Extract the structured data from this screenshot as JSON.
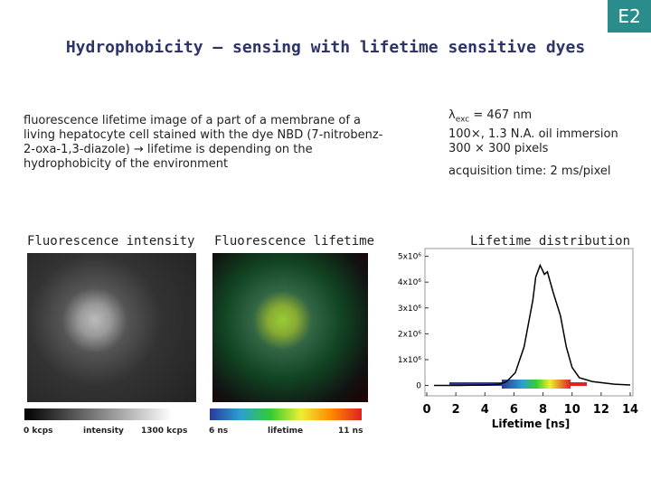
{
  "badge": "E2",
  "title": "Hydrophobicity – sensing with lifetime sensitive dyes",
  "description": "fluorescence lifetime image of a part of a membrane of a living hepatocyte cell stained with the dye NBD (7-nitrobenz-2-oxa-1,3-diazole) → lifetime is depending on the hydrophobicity of the environment",
  "parameters": {
    "excitation": {
      "symbol": "λ",
      "subscript": "exc",
      "text": "= 467 nm"
    },
    "lines": [
      "100×, 1.3 N.A. oil immersion",
      "300 × 300 pixels"
    ],
    "acquisition": "acquisition time: 2 ms/pixel"
  },
  "panels": [
    {
      "title": "Fluorescence intensity",
      "scale": [
        "0 kcps",
        "intensity",
        "1300 kcps"
      ]
    },
    {
      "title": "Fluorescence lifetime",
      "scale": [
        "6 ns",
        "lifetime",
        "11 ns"
      ]
    }
  ],
  "chart_data": {
    "type": "line",
    "title": "Lifetime distribution",
    "xlabel": "Lifetime [ns]",
    "x": [
      0.5,
      2,
      4,
      5,
      5.5,
      6.1,
      6.7,
      7.3,
      7.5,
      7.8,
      8.1,
      8.3,
      8.7,
      9.2,
      9.6,
      10,
      10.5,
      11.4,
      12.9,
      14
    ],
    "series": [
      {
        "color": "#000000",
        "values": [
          0,
          0,
          20000,
          50000,
          150000,
          500000,
          1500000,
          3300000,
          4200000,
          4650000,
          4300000,
          4400000,
          3600000,
          2700000,
          1500000,
          700000,
          300000,
          150000,
          50000,
          20000
        ]
      }
    ],
    "xlim": [
      0,
      14
    ],
    "ylim": [
      -400000,
      5300000
    ],
    "xticks": [
      0,
      2,
      4,
      6,
      8,
      10,
      12,
      14
    ],
    "yticks": [
      0,
      {
        "value": 1000000,
        "label": "1x10⁶"
      },
      {
        "value": 2000000,
        "label": "2x10⁶"
      },
      {
        "value": 3000000,
        "label": "3x10⁶"
      },
      {
        "value": 4000000,
        "label": "4x10⁶"
      },
      {
        "value": 5000000,
        "label": "5x10⁶"
      }
    ]
  }
}
